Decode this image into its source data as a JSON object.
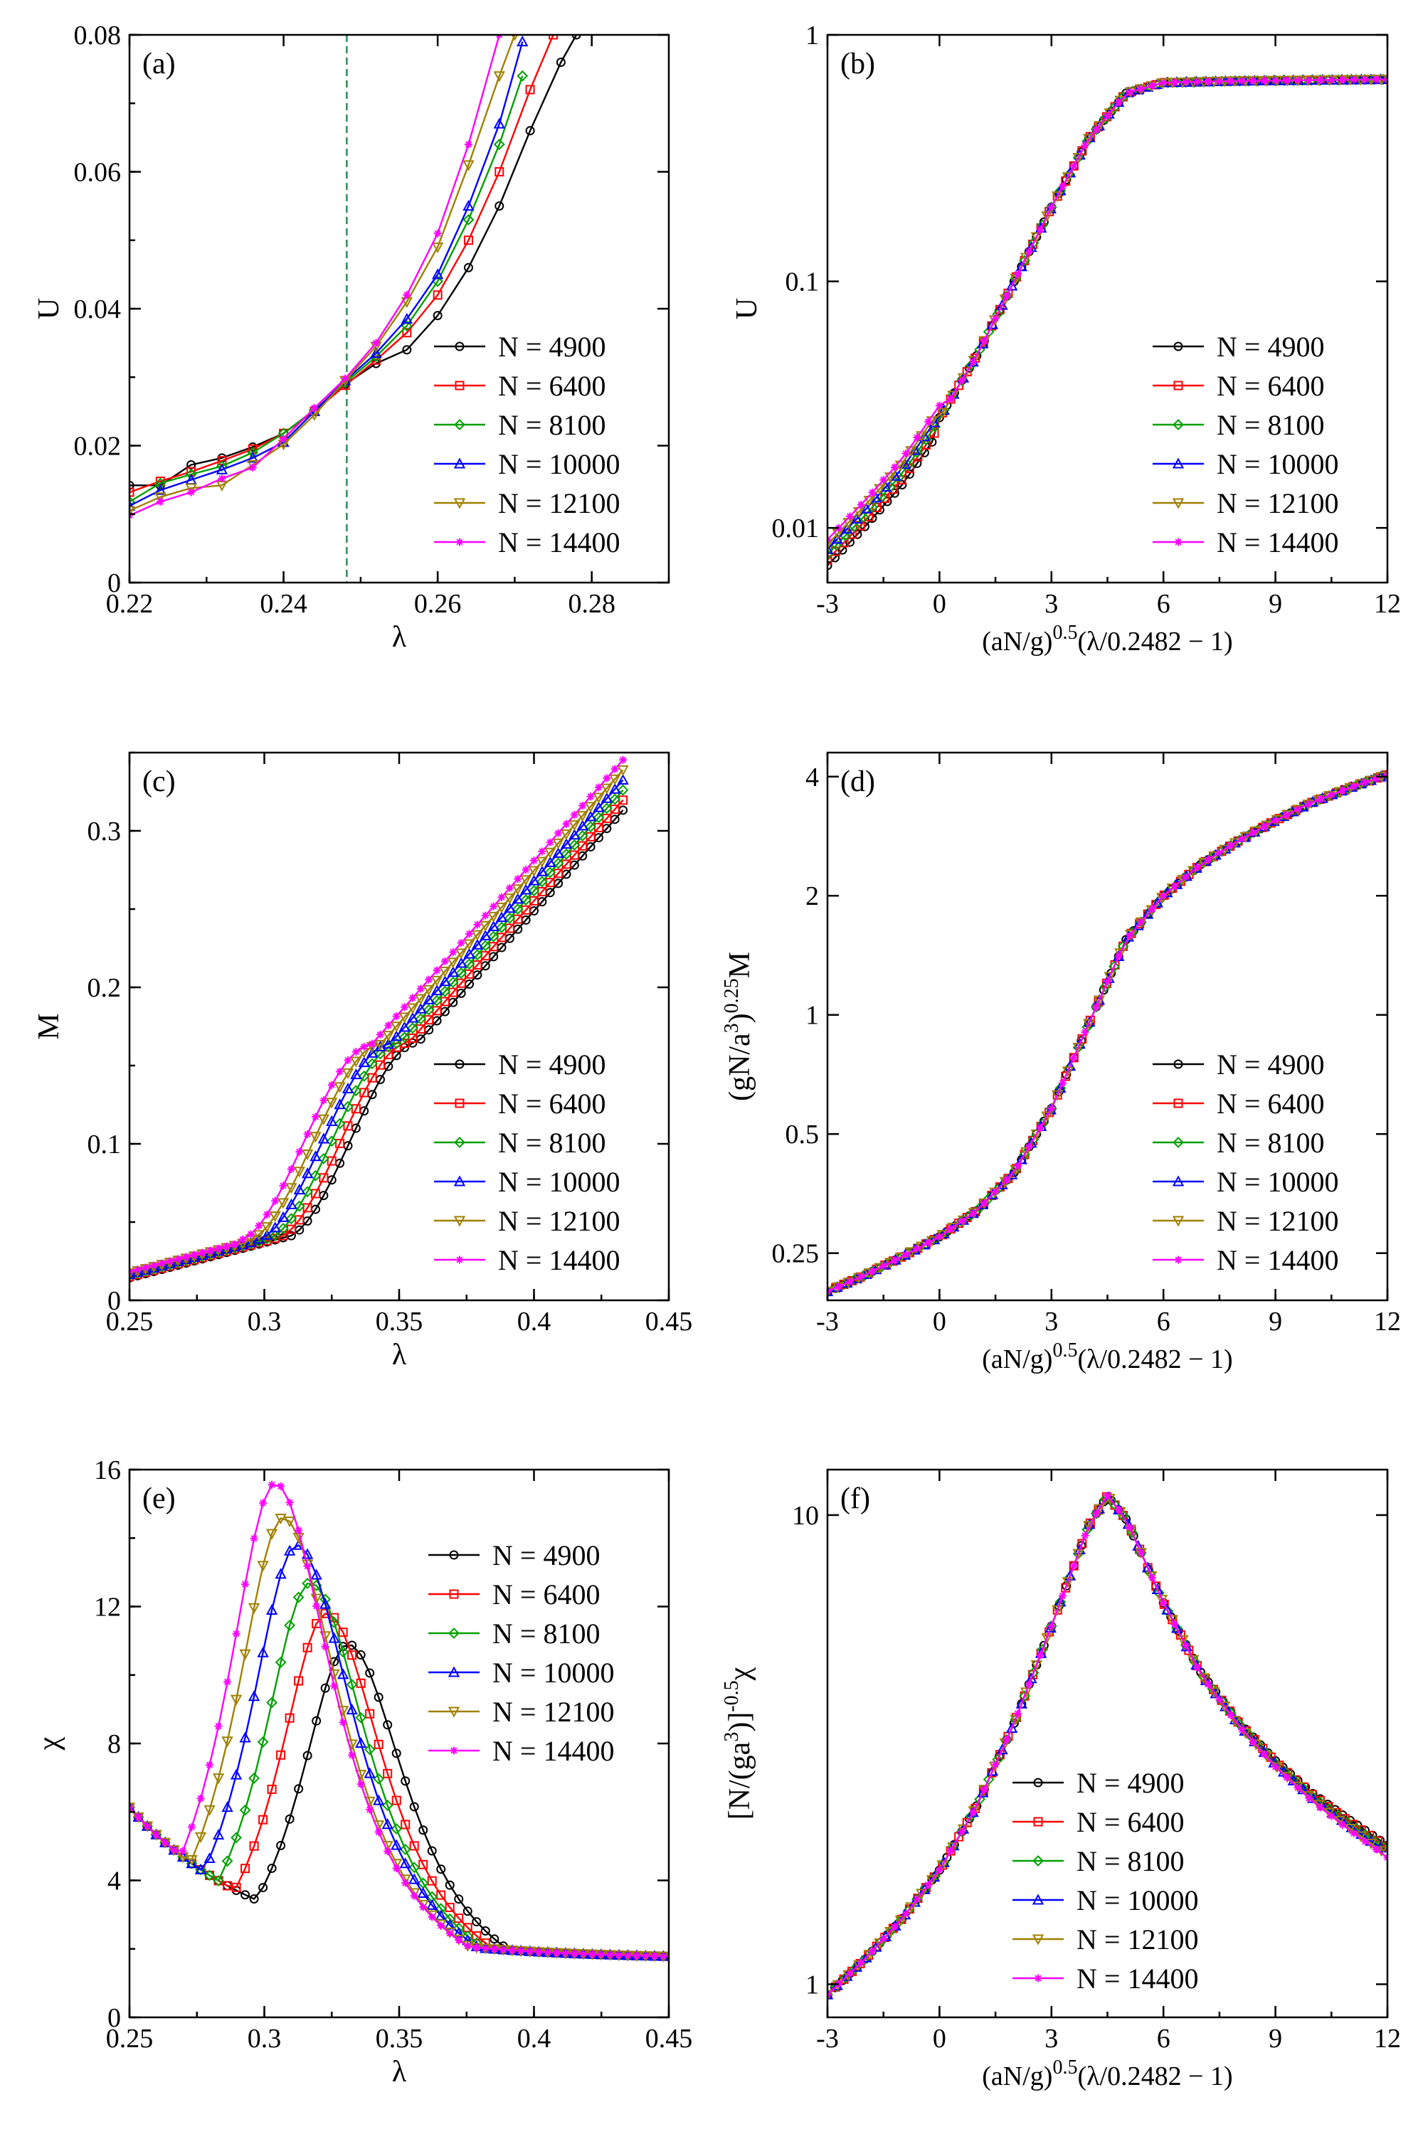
{
  "colors": {
    "N = 4900": "#000000",
    "N = 6400": "#ff0000",
    "N = 8100": "#00a000",
    "N = 10000": "#0000ff",
    "N = 12100": "#a08000",
    "N = 14400": "#ff00ff"
  },
  "markers": {
    "N = 4900": "circle",
    "N = 6400": "square",
    "N = 8100": "diamond",
    "N = 10000": "triangle-up",
    "N = 12100": "triangle-down",
    "N = 14400": "star"
  },
  "chart_data": [
    {
      "id": "a",
      "type": "line",
      "panel_label": "(a)",
      "xlabel": "λ",
      "ylabel": "U",
      "xlim": [
        0.22,
        0.29
      ],
      "ylim": [
        0,
        0.08
      ],
      "yscale": "linear",
      "xticks": [
        "0.22",
        "0.24",
        "0.26",
        "0.28"
      ],
      "xtick_values": [
        0.22,
        0.24,
        0.26,
        0.28
      ],
      "yticks": [
        "0",
        "0.02",
        "0.04",
        "0.06",
        "0.08"
      ],
      "ytick_values": [
        0,
        0.02,
        0.04,
        0.06,
        0.08
      ],
      "vline": 0.2482,
      "legend_position": "bottom-right",
      "legend": [
        "N = 4900",
        "N = 6400",
        "N = 8100",
        "N = 10000",
        "N = 12100",
        "N = 14400"
      ],
      "series": [
        {
          "name": "N = 4900",
          "x": [
            0.22,
            0.224,
            0.228,
            0.232,
            0.236,
            0.24,
            0.244,
            0.248,
            0.252,
            0.256,
            0.26,
            0.264,
            0.268,
            0.272,
            0.276,
            0.278
          ],
          "y": [
            0.0142,
            0.0142,
            0.0172,
            0.0182,
            0.0198,
            0.0218,
            0.0252,
            0.029,
            0.032,
            0.034,
            0.039,
            0.046,
            0.055,
            0.066,
            0.076,
            0.08
          ]
        },
        {
          "name": "N = 6400",
          "x": [
            0.22,
            0.224,
            0.228,
            0.232,
            0.236,
            0.24,
            0.244,
            0.248,
            0.252,
            0.256,
            0.26,
            0.264,
            0.268,
            0.272,
            0.275
          ],
          "y": [
            0.0132,
            0.0148,
            0.0162,
            0.0178,
            0.0195,
            0.0218,
            0.025,
            0.0288,
            0.0325,
            0.0365,
            0.042,
            0.05,
            0.06,
            0.072,
            0.08
          ]
        },
        {
          "name": "N = 8100",
          "x": [
            0.22,
            0.224,
            0.228,
            0.232,
            0.236,
            0.24,
            0.244,
            0.248,
            0.252,
            0.256,
            0.26,
            0.264,
            0.268,
            0.271
          ],
          "y": [
            0.0118,
            0.0145,
            0.0158,
            0.017,
            0.019,
            0.0218,
            0.0252,
            0.0292,
            0.033,
            0.0375,
            0.044,
            0.053,
            0.064,
            0.074
          ]
        },
        {
          "name": "N = 10000",
          "x": [
            0.22,
            0.224,
            0.228,
            0.232,
            0.236,
            0.24,
            0.244,
            0.248,
            0.252,
            0.256,
            0.26,
            0.264,
            0.268,
            0.271
          ],
          "y": [
            0.0112,
            0.0135,
            0.015,
            0.0165,
            0.0182,
            0.0205,
            0.025,
            0.0295,
            0.0335,
            0.0385,
            0.045,
            0.055,
            0.067,
            0.079
          ]
        },
        {
          "name": "N = 12100",
          "x": [
            0.22,
            0.224,
            0.228,
            0.232,
            0.236,
            0.24,
            0.244,
            0.248,
            0.252,
            0.256,
            0.26,
            0.264,
            0.268,
            0.27
          ],
          "y": [
            0.0105,
            0.0125,
            0.0138,
            0.0142,
            0.0172,
            0.0202,
            0.0245,
            0.0295,
            0.0345,
            0.041,
            0.049,
            0.061,
            0.074,
            0.08
          ]
        },
        {
          "name": "N = 14400",
          "x": [
            0.22,
            0.224,
            0.228,
            0.232,
            0.236,
            0.24,
            0.244,
            0.248,
            0.252,
            0.256,
            0.26,
            0.264,
            0.268
          ],
          "y": [
            0.0098,
            0.0118,
            0.0132,
            0.0152,
            0.0168,
            0.021,
            0.0255,
            0.0298,
            0.035,
            0.042,
            0.051,
            0.064,
            0.08
          ]
        }
      ]
    },
    {
      "id": "b",
      "type": "line",
      "panel_label": "(b)",
      "xlabel": "(aN/g)^0.5(λ/0.2482 − 1)",
      "ylabel": "U",
      "xlim": [
        -3,
        12
      ],
      "ylim": [
        0.006,
        1
      ],
      "yscale": "log",
      "xticks": [
        "-3",
        "0",
        "3",
        "6",
        "9",
        "12"
      ],
      "xtick_values": [
        -3,
        0,
        3,
        6,
        9,
        12
      ],
      "yticks": [
        "0.01",
        "0.1",
        "1"
      ],
      "ytick_values": [
        0.01,
        0.1,
        1
      ],
      "legend_position": "bottom-right",
      "legend": [
        "N = 4900",
        "N = 6400",
        "N = 8100",
        "N = 10000",
        "N = 12100",
        "N = 14400"
      ],
      "collapse_curve": {
        "x": [
          -3,
          -2,
          -1,
          0,
          1,
          2,
          3,
          4,
          5,
          6,
          8,
          10,
          12
        ],
        "y": [
          0.008,
          0.0115,
          0.017,
          0.028,
          0.05,
          0.1,
          0.2,
          0.38,
          0.58,
          0.64,
          0.65,
          0.655,
          0.66
        ]
      }
    },
    {
      "id": "c",
      "type": "line",
      "panel_label": "(c)",
      "xlabel": "λ",
      "ylabel": "M",
      "xlim": [
        0.25,
        0.45
      ],
      "ylim": [
        0,
        0.35
      ],
      "yscale": "linear",
      "xticks": [
        "0.25",
        "0.3",
        "0.35",
        "0.4",
        "0.45"
      ],
      "xtick_values": [
        0.25,
        0.3,
        0.35,
        0.4,
        0.45
      ],
      "yticks": [
        "0",
        "0.1",
        "0.2",
        "0.3"
      ],
      "ytick_values": [
        0,
        0.1,
        0.2,
        0.3
      ],
      "legend_position": "bottom-right",
      "legend": [
        "N = 4900",
        "N = 6400",
        "N = 8100",
        "N = 10000",
        "N = 12100",
        "N = 14400"
      ]
    },
    {
      "id": "d",
      "type": "line",
      "panel_label": "(d)",
      "xlabel": "(aN/g)^0.5(λ/0.2482 − 1)",
      "ylabel": "(gN/a^3)^0.25 M",
      "xlim": [
        -3,
        12
      ],
      "ylim": [
        0.19,
        4.6
      ],
      "yscale": "log",
      "xticks": [
        "-3",
        "0",
        "3",
        "6",
        "9",
        "12"
      ],
      "xtick_values": [
        -3,
        0,
        3,
        6,
        9,
        12
      ],
      "yticks": [
        "0.25",
        "0.5",
        "1",
        "2",
        "4"
      ],
      "ytick_values": [
        0.25,
        0.5,
        1,
        2,
        4
      ],
      "legend_position": "bottom-right",
      "legend": [
        "N = 4900",
        "N = 6400",
        "N = 8100",
        "N = 10000",
        "N = 12100",
        "N = 14400"
      ],
      "collapse_curve": {
        "x": [
          -3,
          -2,
          -1,
          0,
          1,
          2,
          3,
          4,
          5,
          6,
          7,
          8,
          9,
          10,
          11,
          12
        ],
        "y": [
          0.2,
          0.22,
          0.245,
          0.275,
          0.32,
          0.4,
          0.58,
          0.95,
          1.55,
          2.0,
          2.4,
          2.75,
          3.1,
          3.45,
          3.75,
          4.05
        ]
      }
    },
    {
      "id": "e",
      "type": "line",
      "panel_label": "(e)",
      "xlabel": "λ",
      "ylabel": "χ",
      "xlim": [
        0.25,
        0.45
      ],
      "ylim": [
        0,
        16
      ],
      "yscale": "linear",
      "xticks": [
        "0.25",
        "0.3",
        "0.35",
        "0.4",
        "0.45"
      ],
      "xtick_values": [
        0.25,
        0.3,
        0.35,
        0.4,
        0.45
      ],
      "yticks": [
        "0",
        "4",
        "8",
        "12",
        "16"
      ],
      "ytick_values": [
        0,
        4,
        8,
        12,
        16
      ],
      "legend_position": "top-right",
      "legend": [
        "N = 4900",
        "N = 6400",
        "N = 8100",
        "N = 10000",
        "N = 12100",
        "N = 14400"
      ],
      "peaks": [
        {
          "name": "N = 4900",
          "lambda_peak": 0.331,
          "chi_peak": 10.9
        },
        {
          "name": "N = 6400",
          "lambda_peak": 0.323,
          "chi_peak": 11.8
        },
        {
          "name": "N = 8100",
          "lambda_peak": 0.317,
          "chi_peak": 12.7
        },
        {
          "name": "N = 10000",
          "lambda_peak": 0.312,
          "chi_peak": 13.8
        },
        {
          "name": "N = 12100",
          "lambda_peak": 0.307,
          "chi_peak": 14.6
        },
        {
          "name": "N = 14400",
          "lambda_peak": 0.304,
          "chi_peak": 15.6
        }
      ]
    },
    {
      "id": "f",
      "type": "line",
      "panel_label": "(f)",
      "xlabel": "(aN/g)^0.5(λ/0.2482 − 1)",
      "ylabel": "[N/(ga^3)]^-0.5 χ",
      "xlim": [
        -3,
        12
      ],
      "ylim": [
        0.85,
        12.5
      ],
      "yscale": "log",
      "xticks": [
        "-3",
        "0",
        "3",
        "6",
        "9",
        "12"
      ],
      "xtick_values": [
        -3,
        0,
        3,
        6,
        9,
        12
      ],
      "yticks": [
        "1",
        "10"
      ],
      "ytick_values": [
        1,
        10
      ],
      "legend_position": "bottom-center",
      "legend": [
        "N = 4900",
        "N = 6400",
        "N = 8100",
        "N = 10000",
        "N = 12100",
        "N = 14400"
      ],
      "collapse_curve": {
        "x": [
          -3,
          -2,
          -1,
          0,
          1,
          2,
          3,
          4,
          4.5,
          5,
          6,
          7,
          8,
          9,
          10,
          11,
          12
        ],
        "y": [
          0.95,
          1.13,
          1.38,
          1.75,
          2.4,
          3.6,
          5.8,
          9.5,
          11.0,
          9.8,
          6.5,
          4.6,
          3.6,
          2.95,
          2.5,
          2.18,
          1.92
        ]
      }
    }
  ]
}
